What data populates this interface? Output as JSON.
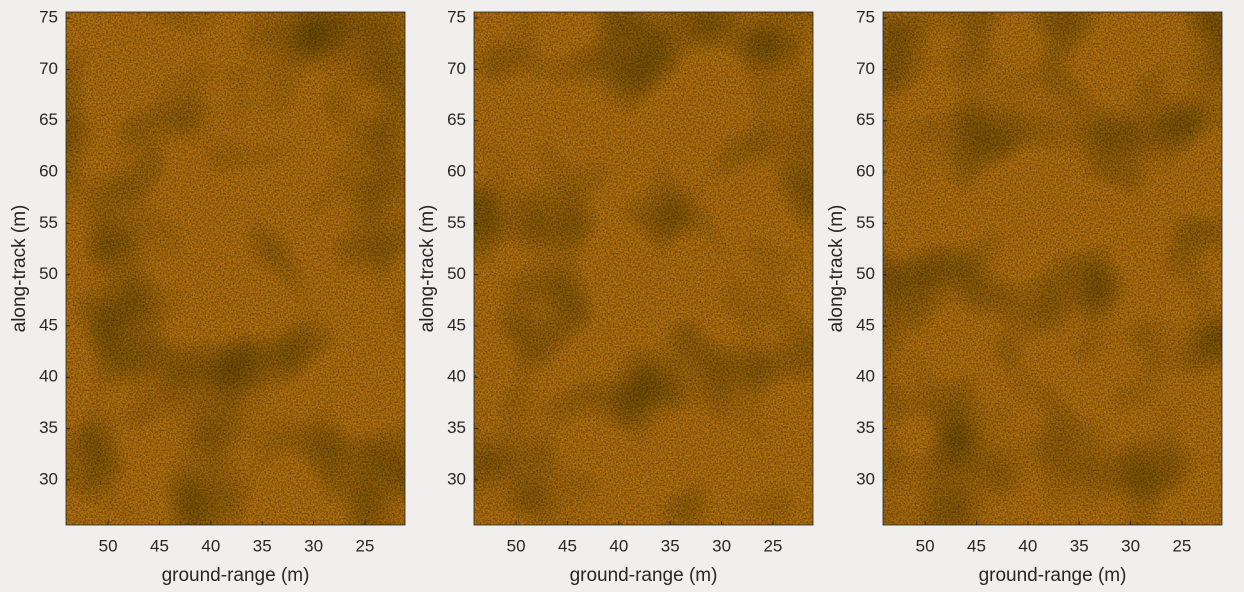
{
  "chart_data": [
    {
      "type": "image",
      "xlabel": "ground-range (m)",
      "ylabel": "along-track (m)",
      "xlim": [
        54.1,
        21.1
      ],
      "ylim": [
        25.6,
        75.6
      ],
      "xticks": [
        50,
        45,
        40,
        35,
        30,
        25
      ],
      "yticks": [
        30,
        35,
        40,
        45,
        50,
        55,
        60,
        65,
        70,
        75
      ]
    },
    {
      "type": "image",
      "xlabel": "ground-range (m)",
      "ylabel": "along-track (m)",
      "xlim": [
        54.1,
        21.1
      ],
      "ylim": [
        25.6,
        75.6
      ],
      "xticks": [
        50,
        45,
        40,
        35,
        30,
        25
      ],
      "yticks": [
        30,
        35,
        40,
        45,
        50,
        55,
        60,
        65,
        70,
        75
      ]
    },
    {
      "type": "image",
      "xlabel": "ground-range (m)",
      "ylabel": "along-track (m)",
      "xlim": [
        54.1,
        21.1
      ],
      "ylim": [
        25.6,
        75.6
      ],
      "xticks": [
        50,
        45,
        40,
        35,
        30,
        25
      ],
      "yticks": [
        30,
        35,
        40,
        45,
        50,
        55,
        60,
        65,
        70,
        75
      ]
    }
  ]
}
